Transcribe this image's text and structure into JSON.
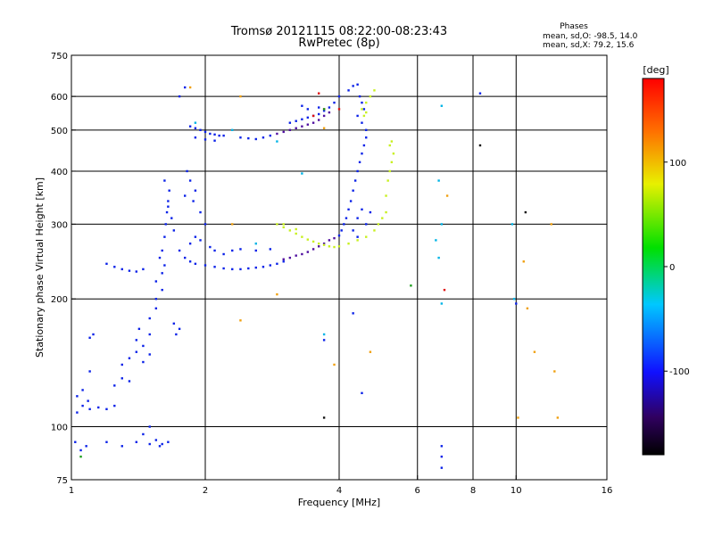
{
  "chart_data": {
    "type": "scatter",
    "title": "Tromsø 20121115 08:22:00-08:23:43",
    "subtitle": "RwPretec (8p)",
    "xlabel": "Frequency [MHz]",
    "ylabel": "Stationary phase Virtual Height [km]",
    "x_scale": "log",
    "y_scale": "log",
    "xlim": [
      1,
      16
    ],
    "ylim": [
      75,
      750
    ],
    "x_ticks": [
      1,
      2,
      4,
      6,
      8,
      10,
      16
    ],
    "y_ticks": [
      75,
      100,
      200,
      300,
      400,
      500,
      600,
      750
    ],
    "grid_x": [
      2,
      4,
      6,
      8,
      10
    ],
    "grid_y": [
      100,
      200,
      300,
      400,
      500,
      600
    ],
    "grid": true,
    "phase_info": {
      "heading": "Phases",
      "line_o": "mean, sd,O:  -98.5, 14.0",
      "line_x": "mean, sd,X:  79.2, 15.6"
    },
    "colorbar": {
      "label": "[deg]",
      "range": [
        -180,
        180
      ],
      "ticks": [
        100,
        0,
        -100
      ],
      "tick_labels": [
        "100",
        "0",
        "-100"
      ]
    },
    "series": [
      {
        "color": "#0b22e8",
        "points": [
          [
            1.02,
            92
          ],
          [
            1.05,
            88
          ],
          [
            1.08,
            90
          ],
          [
            1.03,
            108
          ],
          [
            1.06,
            112
          ],
          [
            1.1,
            110
          ],
          [
            1.15,
            111
          ],
          [
            1.2,
            110
          ],
          [
            1.25,
            112
          ],
          [
            1.03,
            118
          ],
          [
            1.06,
            122
          ],
          [
            1.09,
            115
          ],
          [
            1.1,
            135
          ],
          [
            1.1,
            162
          ],
          [
            1.12,
            165
          ],
          [
            1.25,
            125
          ],
          [
            1.3,
            130
          ],
          [
            1.35,
            128
          ],
          [
            1.3,
            140
          ],
          [
            1.35,
            145
          ],
          [
            1.4,
            150
          ],
          [
            1.4,
            160
          ],
          [
            1.42,
            170
          ],
          [
            1.45,
            155
          ],
          [
            1.5,
            165
          ],
          [
            1.45,
            142
          ],
          [
            1.5,
            148
          ],
          [
            1.5,
            180
          ],
          [
            1.55,
            190
          ],
          [
            1.55,
            200
          ],
          [
            1.6,
            210
          ],
          [
            1.55,
            220
          ],
          [
            1.6,
            230
          ],
          [
            1.62,
            240
          ],
          [
            1.58,
            250
          ],
          [
            1.3,
            90
          ],
          [
            1.4,
            92
          ],
          [
            1.5,
            91
          ],
          [
            1.55,
            93
          ],
          [
            1.58,
            90
          ],
          [
            1.6,
            91
          ],
          [
            1.65,
            92
          ],
          [
            1.2,
            92
          ],
          [
            1.45,
            96
          ],
          [
            1.5,
            100
          ],
          [
            1.2,
            242
          ],
          [
            1.25,
            238
          ],
          [
            1.3,
            235
          ],
          [
            1.35,
            233
          ],
          [
            1.4,
            232
          ],
          [
            1.45,
            235
          ],
          [
            1.6,
            260
          ],
          [
            1.62,
            280
          ],
          [
            1.63,
            300
          ],
          [
            1.64,
            320
          ],
          [
            1.65,
            340
          ],
          [
            1.66,
            360
          ],
          [
            1.62,
            380
          ],
          [
            1.65,
            330
          ],
          [
            1.7,
            290
          ],
          [
            1.68,
            310
          ],
          [
            1.75,
            260
          ],
          [
            1.8,
            250
          ],
          [
            1.85,
            245
          ],
          [
            1.9,
            242
          ],
          [
            2.0,
            240
          ],
          [
            1.85,
            270
          ],
          [
            1.9,
            280
          ],
          [
            1.95,
            275
          ],
          [
            2.05,
            265
          ],
          [
            2.1,
            260
          ],
          [
            1.8,
            350
          ],
          [
            1.85,
            380
          ],
          [
            1.9,
            360
          ],
          [
            1.95,
            320
          ],
          [
            2.0,
            300
          ],
          [
            1.82,
            400
          ],
          [
            1.88,
            340
          ],
          [
            1.75,
            600
          ],
          [
            1.8,
            630
          ],
          [
            1.85,
            510
          ],
          [
            1.9,
            505
          ],
          [
            1.95,
            500
          ],
          [
            2.0,
            495
          ],
          [
            2.05,
            490
          ],
          [
            2.1,
            488
          ],
          [
            2.15,
            485
          ],
          [
            2.2,
            485
          ],
          [
            1.9,
            480
          ],
          [
            2.0,
            475
          ],
          [
            2.1,
            472
          ],
          [
            2.4,
            480
          ],
          [
            2.5,
            478
          ],
          [
            2.6,
            476
          ],
          [
            2.7,
            480
          ],
          [
            2.8,
            485
          ],
          [
            2.1,
            238
          ],
          [
            2.2,
            236
          ],
          [
            2.3,
            235
          ],
          [
            2.4,
            235
          ],
          [
            2.5,
            236
          ],
          [
            2.6,
            237
          ],
          [
            2.7,
            238
          ],
          [
            2.8,
            240
          ],
          [
            2.9,
            242
          ],
          [
            3.0,
            245
          ],
          [
            2.3,
            260
          ],
          [
            2.4,
            262
          ],
          [
            2.6,
            260
          ],
          [
            2.8,
            262
          ],
          [
            2.2,
            255
          ],
          [
            3.1,
            520
          ],
          [
            3.2,
            525
          ],
          [
            3.3,
            530
          ],
          [
            3.4,
            535
          ],
          [
            3.5,
            540
          ],
          [
            3.6,
            545
          ],
          [
            3.7,
            555
          ],
          [
            3.8,
            565
          ],
          [
            3.9,
            580
          ],
          [
            4.0,
            600
          ],
          [
            3.4,
            560
          ],
          [
            3.6,
            565
          ],
          [
            3.3,
            570
          ],
          [
            4.2,
            620
          ],
          [
            4.3,
            635
          ],
          [
            4.4,
            640
          ],
          [
            4.0,
            282
          ],
          [
            4.05,
            290
          ],
          [
            4.1,
            300
          ],
          [
            4.15,
            310
          ],
          [
            4.2,
            325
          ],
          [
            4.25,
            340
          ],
          [
            4.3,
            360
          ],
          [
            4.35,
            380
          ],
          [
            4.4,
            400
          ],
          [
            4.45,
            420
          ],
          [
            4.5,
            440
          ],
          [
            4.55,
            460
          ],
          [
            4.6,
            480
          ],
          [
            4.6,
            500
          ],
          [
            4.5,
            520
          ],
          [
            4.4,
            540
          ],
          [
            4.55,
            560
          ],
          [
            4.5,
            580
          ],
          [
            4.45,
            600
          ],
          [
            4.4,
            310
          ],
          [
            4.5,
            325
          ],
          [
            4.6,
            300
          ],
          [
            4.7,
            320
          ],
          [
            4.3,
            290
          ],
          [
            4.4,
            280
          ],
          [
            1.7,
            175
          ],
          [
            1.75,
            170
          ],
          [
            1.72,
            165
          ],
          [
            3.7,
            160
          ],
          [
            4.3,
            185
          ],
          [
            4.5,
            120
          ],
          [
            6.8,
            85
          ],
          [
            6.8,
            80
          ],
          [
            6.8,
            90
          ],
          [
            10,
            195
          ],
          [
            8.3,
            610
          ]
        ]
      },
      {
        "color": "#5010a0",
        "points": [
          [
            3.0,
            248
          ],
          [
            3.1,
            250
          ],
          [
            3.2,
            253
          ],
          [
            3.3,
            255
          ],
          [
            3.4,
            258
          ],
          [
            3.5,
            262
          ],
          [
            3.6,
            266
          ],
          [
            3.7,
            270
          ],
          [
            3.8,
            275
          ],
          [
            3.9,
            278
          ],
          [
            2.9,
            490
          ],
          [
            3.0,
            495
          ],
          [
            3.1,
            500
          ],
          [
            3.2,
            505
          ],
          [
            3.3,
            510
          ],
          [
            3.4,
            515
          ],
          [
            3.5,
            520
          ],
          [
            3.6,
            528
          ],
          [
            3.7,
            540
          ],
          [
            3.8,
            550
          ]
        ]
      },
      {
        "color": "#c8f020",
        "points": [
          [
            2.9,
            300
          ],
          [
            3.0,
            295
          ],
          [
            3.1,
            290
          ],
          [
            3.2,
            285
          ],
          [
            3.3,
            280
          ],
          [
            3.4,
            276
          ],
          [
            3.5,
            273
          ],
          [
            3.6,
            270
          ],
          [
            3.7,
            268
          ],
          [
            3.8,
            266
          ],
          [
            3.9,
            265
          ],
          [
            4.0,
            266
          ],
          [
            4.2,
            270
          ],
          [
            4.4,
            275
          ],
          [
            4.6,
            280
          ],
          [
            4.8,
            290
          ],
          [
            4.9,
            300
          ],
          [
            5.0,
            310
          ],
          [
            5.1,
            320
          ],
          [
            5.1,
            350
          ],
          [
            5.15,
            380
          ],
          [
            5.2,
            400
          ],
          [
            5.25,
            420
          ],
          [
            5.3,
            440
          ],
          [
            5.2,
            460
          ],
          [
            5.25,
            470
          ],
          [
            4.6,
            580
          ],
          [
            4.7,
            600
          ],
          [
            4.8,
            620
          ],
          [
            4.5,
            560
          ],
          [
            4.55,
            540
          ],
          [
            4.6,
            550
          ],
          [
            3.0,
            300
          ],
          [
            3.2,
            292
          ]
        ]
      },
      {
        "color": "#00b4e6",
        "points": [
          [
            6.8,
            570
          ],
          [
            6.7,
            380
          ],
          [
            6.8,
            300
          ],
          [
            6.6,
            275
          ],
          [
            6.7,
            250
          ],
          [
            6.8,
            195
          ],
          [
            9.8,
            300
          ],
          [
            9.9,
            200
          ],
          [
            1.9,
            520
          ],
          [
            2.3,
            500
          ],
          [
            2.9,
            470
          ],
          [
            3.3,
            395
          ],
          [
            2.6,
            270
          ],
          [
            3.7,
            165
          ]
        ]
      },
      {
        "color": "#f0a010",
        "points": [
          [
            2.4,
            600
          ],
          [
            1.85,
            630
          ],
          [
            2.3,
            300
          ],
          [
            2.9,
            205
          ],
          [
            2.4,
            178
          ],
          [
            3.9,
            140
          ],
          [
            7.0,
            350
          ],
          [
            10.4,
            245
          ],
          [
            10.6,
            190
          ],
          [
            11.0,
            150
          ],
          [
            12.0,
            300
          ],
          [
            12.2,
            135
          ],
          [
            12.4,
            105
          ],
          [
            10.1,
            105
          ],
          [
            3.7,
            505
          ],
          [
            4.7,
            150
          ]
        ]
      },
      {
        "color": "#e01010",
        "points": [
          [
            3.6,
            610
          ],
          [
            3.7,
            560
          ],
          [
            4.0,
            560
          ],
          [
            6.9,
            210
          ],
          [
            3.5,
            540
          ]
        ]
      },
      {
        "color": "#1c9e1c",
        "points": [
          [
            3.7,
            560
          ],
          [
            5.8,
            215
          ],
          [
            1.05,
            85
          ]
        ]
      },
      {
        "color": "#111111",
        "points": [
          [
            10.5,
            320
          ],
          [
            8.3,
            460
          ],
          [
            3.7,
            105
          ]
        ]
      }
    ]
  }
}
